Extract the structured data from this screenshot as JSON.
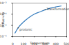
{
  "chart_data": {
    "type": "line",
    "x_label": "Temperature",
    "y_label": "Diffusivity",
    "log": "y",
    "grid": false,
    "color": "#3a7fbf",
    "x": [
      20,
      50,
      100,
      150,
      200,
      250,
      300,
      350,
      400,
      450
    ],
    "values": [
      2e-06,
      6e-06,
      2e-05,
      5e-05,
      0.0001,
      0.00016,
      0.00025,
      0.00035,
      0.00045,
      0.00055
    ],
    "xlim": [
      0,
      500
    ],
    "xticks": [
      0,
      100,
      200,
      300,
      400,
      500
    ],
    "ylim": [
      1e-06,
      0.001
    ],
    "yticks": [
      {
        "value": 1e-06,
        "label": "10⁻⁶"
      },
      {
        "value": 1e-05,
        "label": "10⁻⁵"
      },
      {
        "value": 0.0001,
        "label": "10⁻⁴"
      },
      {
        "value": 0.001,
        "label": "10⁻³"
      }
    ],
    "annotations": [
      {
        "text": "Transformation",
        "x": 300,
        "y": 0.00025
      },
      {
        "text": "protonic",
        "x": 50,
        "y": 6e-06
      }
    ]
  }
}
